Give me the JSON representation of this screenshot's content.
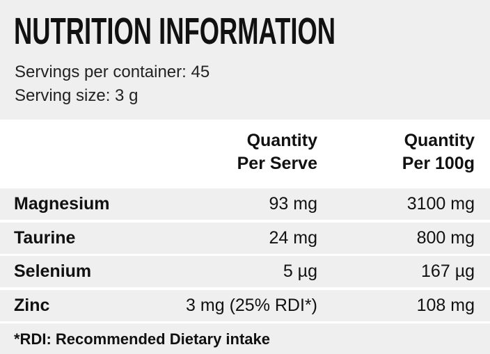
{
  "header": {
    "title": "NUTRITION INFORMATION",
    "servings_per_container": "Servings per container: 45",
    "serving_size": "Serving size: 3 g"
  },
  "table": {
    "columns": [
      [
        "Quantity",
        "Per Serve"
      ],
      [
        "Quantity",
        "Per 100g"
      ]
    ],
    "rows": [
      [
        "Magnesium",
        "93 mg",
        "3100 mg"
      ],
      [
        "Taurine",
        "24 mg",
        "800 mg"
      ],
      [
        "Selenium",
        "5 µg",
        "167 µg"
      ],
      [
        "Zinc",
        "3 mg (25% RDI*)",
        "108 mg"
      ]
    ]
  },
  "footnote": "*RDI: Recommended Dietary intake"
}
